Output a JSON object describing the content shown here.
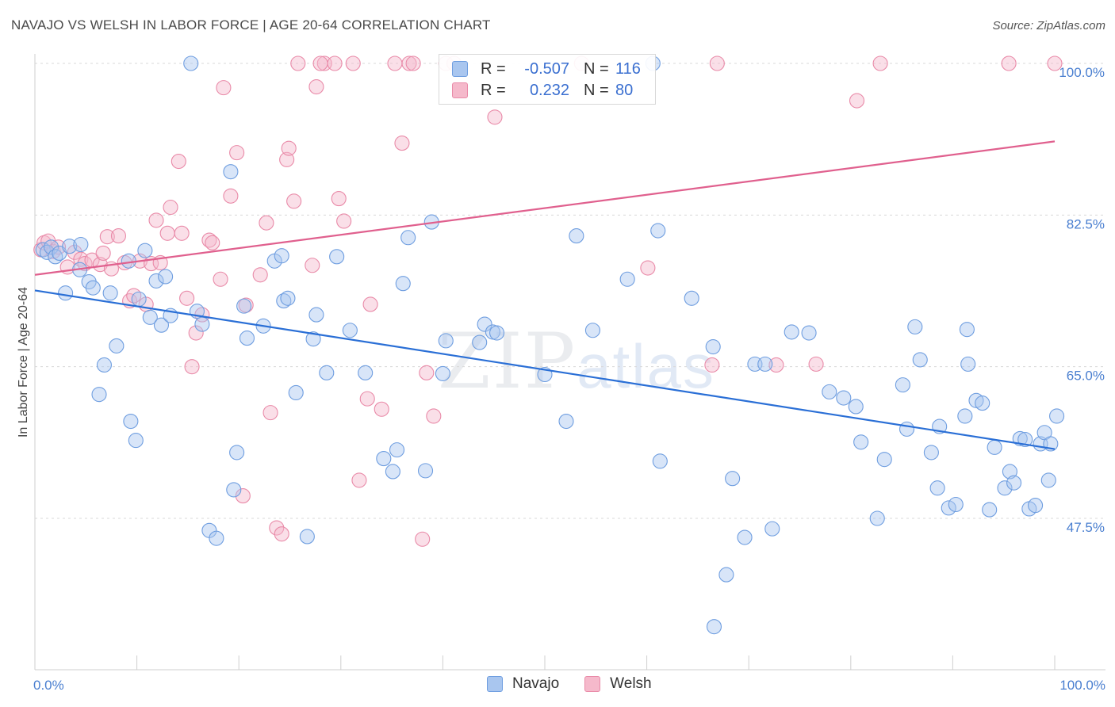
{
  "title": "NAVAJO VS WELSH IN LABOR FORCE | AGE 20-64 CORRELATION CHART",
  "source": "Source: ZipAtlas.com",
  "watermark": {
    "zip": "ZIP",
    "atlas": "atlas"
  },
  "colors": {
    "navajo_fill": "#a9c6ef",
    "navajo_stroke": "#6f9ee0",
    "navajo_line": "#2a6fd6",
    "welsh_fill": "#f5b9cb",
    "welsh_stroke": "#e98aa8",
    "welsh_line": "#e0608e",
    "grid": "#d8d8d8",
    "axis_text": "#4a7fd0"
  },
  "legend_top": {
    "navajo": {
      "r_label": "R =",
      "r_value": "-0.507",
      "n_label": "N =",
      "n_value": "116"
    },
    "welsh": {
      "r_label": "R =",
      "r_value": "0.232",
      "n_label": "N =",
      "n_value": "80"
    }
  },
  "legend_bottom": {
    "navajo": "Navajo",
    "welsh": "Welsh"
  },
  "chart_data": {
    "type": "scatter",
    "title": "NAVAJO VS WELSH IN LABOR FORCE | AGE 20-64 CORRELATION CHART",
    "xlabel": "",
    "ylabel": "In Labor Force | Age 20-64",
    "xlim": [
      0,
      100
    ],
    "ylim": [
      32,
      102
    ],
    "x_tick_labels": [
      {
        "value": 0,
        "label": "0.0%"
      },
      {
        "value": 100,
        "label": "100.0%"
      }
    ],
    "y_tick_labels": [
      {
        "value": 100,
        "label": "100.0%"
      },
      {
        "value": 82.5,
        "label": "82.5%"
      },
      {
        "value": 65,
        "label": "65.0%"
      },
      {
        "value": 47.5,
        "label": "47.5%"
      }
    ],
    "y_gridlines": [
      100,
      82.5,
      65,
      47.5
    ],
    "legend": [
      "Navajo",
      "Welsh"
    ],
    "series": [
      {
        "name": "Navajo",
        "r": -0.507,
        "n": 116,
        "trend": {
          "x": [
            0,
            100
          ],
          "y": [
            73.8,
            55.5
          ]
        },
        "points": [
          [
            0.8,
            78.5
          ],
          [
            1.2,
            78.2
          ],
          [
            1.6,
            78.8
          ],
          [
            2.0,
            77.7
          ],
          [
            2.4,
            78.1
          ],
          [
            3.0,
            73.5
          ],
          [
            3.4,
            78.9
          ],
          [
            4.4,
            76.2
          ],
          [
            4.5,
            79.1
          ],
          [
            5.3,
            74.8
          ],
          [
            5.7,
            74.1
          ],
          [
            6.3,
            61.8
          ],
          [
            6.8,
            65.2
          ],
          [
            7.4,
            73.5
          ],
          [
            8.0,
            67.4
          ],
          [
            9.2,
            77.2
          ],
          [
            9.4,
            58.7
          ],
          [
            9.9,
            56.5
          ],
          [
            10.2,
            72.8
          ],
          [
            10.8,
            78.4
          ],
          [
            11.3,
            70.7
          ],
          [
            11.9,
            74.9
          ],
          [
            12.4,
            69.8
          ],
          [
            12.8,
            75.4
          ],
          [
            13.3,
            70.9
          ],
          [
            15.3,
            100
          ],
          [
            15.9,
            71.4
          ],
          [
            16.4,
            69.9
          ],
          [
            17.1,
            46.1
          ],
          [
            17.8,
            45.2
          ],
          [
            19.2,
            87.5
          ],
          [
            19.5,
            50.8
          ],
          [
            19.8,
            55.1
          ],
          [
            20.5,
            72.0
          ],
          [
            20.8,
            68.3
          ],
          [
            22.4,
            69.7
          ],
          [
            23.5,
            77.2
          ],
          [
            24.2,
            77.8
          ],
          [
            24.4,
            72.6
          ],
          [
            24.8,
            72.9
          ],
          [
            25.6,
            62.0
          ],
          [
            26.7,
            45.4
          ],
          [
            27.3,
            68.2
          ],
          [
            27.6,
            71.0
          ],
          [
            28.6,
            64.3
          ],
          [
            29.6,
            77.7
          ],
          [
            30.9,
            69.2
          ],
          [
            32.4,
            64.3
          ],
          [
            34.2,
            54.4
          ],
          [
            35.1,
            52.9
          ],
          [
            35.5,
            55.4
          ],
          [
            36.1,
            74.6
          ],
          [
            36.6,
            79.9
          ],
          [
            38.3,
            53.0
          ],
          [
            38.9,
            81.7
          ],
          [
            40.0,
            64.2
          ],
          [
            40.3,
            68.0
          ],
          [
            43.6,
            67.8
          ],
          [
            44.1,
            69.9
          ],
          [
            44.9,
            69.0
          ],
          [
            52.1,
            58.7
          ],
          [
            53.1,
            80.1
          ],
          [
            54.7,
            69.2
          ],
          [
            58.1,
            75.1
          ],
          [
            61.1,
            80.7
          ],
          [
            61.3,
            54.1
          ],
          [
            64.4,
            72.9
          ],
          [
            66.5,
            67.3
          ],
          [
            67.8,
            41.0
          ],
          [
            68.4,
            52.1
          ],
          [
            69.6,
            45.3
          ],
          [
            70.6,
            65.3
          ],
          [
            71.6,
            65.3
          ],
          [
            72.3,
            46.3
          ],
          [
            74.2,
            69.0
          ],
          [
            75.9,
            68.9
          ],
          [
            77.9,
            62.1
          ],
          [
            79.3,
            61.4
          ],
          [
            80.5,
            60.4
          ],
          [
            81.0,
            56.3
          ],
          [
            82.6,
            47.5
          ],
          [
            83.3,
            54.3
          ],
          [
            85.1,
            62.9
          ],
          [
            85.5,
            57.8
          ],
          [
            86.3,
            69.6
          ],
          [
            86.8,
            65.8
          ],
          [
            87.9,
            55.1
          ],
          [
            88.5,
            51.0
          ],
          [
            88.7,
            58.1
          ],
          [
            89.6,
            48.7
          ],
          [
            90.3,
            49.1
          ],
          [
            91.4,
            69.3
          ],
          [
            91.5,
            65.3
          ],
          [
            91.2,
            59.3
          ],
          [
            92.3,
            61.1
          ],
          [
            92.9,
            60.8
          ],
          [
            93.6,
            48.5
          ],
          [
            94.1,
            55.7
          ],
          [
            95.1,
            51.0
          ],
          [
            95.6,
            52.9
          ],
          [
            96.0,
            51.6
          ],
          [
            96.6,
            56.7
          ],
          [
            97.1,
            56.6
          ],
          [
            97.5,
            48.6
          ],
          [
            98.1,
            49.0
          ],
          [
            98.6,
            56.1
          ],
          [
            99.0,
            57.4
          ],
          [
            99.6,
            56.1
          ],
          [
            100.2,
            59.3
          ],
          [
            99.4,
            51.9
          ],
          [
            45.3,
            68.9
          ],
          [
            60.6,
            100
          ],
          [
            66.6,
            35.0
          ],
          [
            50.0,
            64.1
          ]
        ]
      },
      {
        "name": "Welsh",
        "r": 0.232,
        "n": 80,
        "trend": {
          "x": [
            0,
            100
          ],
          "y": [
            75.6,
            91.0
          ]
        },
        "points": [
          [
            0.6,
            78.5
          ],
          [
            0.9,
            79.3
          ],
          [
            1.3,
            79.5
          ],
          [
            1.8,
            78.3
          ],
          [
            2.3,
            78.8
          ],
          [
            3.2,
            76.5
          ],
          [
            3.9,
            78.2
          ],
          [
            4.5,
            77.4
          ],
          [
            4.9,
            76.9
          ],
          [
            5.6,
            77.3
          ],
          [
            6.4,
            76.8
          ],
          [
            6.7,
            78.1
          ],
          [
            7.1,
            80.0
          ],
          [
            7.5,
            76.3
          ],
          [
            8.2,
            80.1
          ],
          [
            8.8,
            77.0
          ],
          [
            9.3,
            72.6
          ],
          [
            9.7,
            73.2
          ],
          [
            10.3,
            77.2
          ],
          [
            10.9,
            72.2
          ],
          [
            11.4,
            76.9
          ],
          [
            11.9,
            81.9
          ],
          [
            12.3,
            77.0
          ],
          [
            13.0,
            80.4
          ],
          [
            13.3,
            83.4
          ],
          [
            14.1,
            88.7
          ],
          [
            14.4,
            80.4
          ],
          [
            14.9,
            72.9
          ],
          [
            15.4,
            65.0
          ],
          [
            15.8,
            68.9
          ],
          [
            16.4,
            71.0
          ],
          [
            17.1,
            79.6
          ],
          [
            17.4,
            79.3
          ],
          [
            18.2,
            75.1
          ],
          [
            18.5,
            97.2
          ],
          [
            19.2,
            84.7
          ],
          [
            19.8,
            89.7
          ],
          [
            20.7,
            72.1
          ],
          [
            20.4,
            50.1
          ],
          [
            22.1,
            75.6
          ],
          [
            22.7,
            81.6
          ],
          [
            23.1,
            59.7
          ],
          [
            23.7,
            46.4
          ],
          [
            24.2,
            45.7
          ],
          [
            24.7,
            88.9
          ],
          [
            24.9,
            90.2
          ],
          [
            25.4,
            84.1
          ],
          [
            25.8,
            100
          ],
          [
            27.2,
            76.7
          ],
          [
            27.6,
            97.3
          ],
          [
            28.4,
            100
          ],
          [
            28.0,
            100
          ],
          [
            29.4,
            100
          ],
          [
            29.8,
            84.4
          ],
          [
            30.3,
            81.8
          ],
          [
            31.2,
            100
          ],
          [
            31.8,
            51.9
          ],
          [
            32.6,
            61.3
          ],
          [
            32.9,
            72.2
          ],
          [
            34.0,
            60.1
          ],
          [
            35.3,
            100
          ],
          [
            36.0,
            90.8
          ],
          [
            36.7,
            100
          ],
          [
            37.1,
            100
          ],
          [
            38.0,
            45.1
          ],
          [
            38.4,
            64.3
          ],
          [
            39.1,
            59.3
          ],
          [
            40.3,
            100
          ],
          [
            41.1,
            100
          ],
          [
            45.1,
            93.8
          ],
          [
            53.6,
            100
          ],
          [
            60.1,
            76.4
          ],
          [
            66.4,
            65.2
          ],
          [
            66.9,
            100
          ],
          [
            72.7,
            65.2
          ],
          [
            76.6,
            65.3
          ],
          [
            80.6,
            95.7
          ],
          [
            82.9,
            100
          ],
          [
            95.5,
            100
          ],
          [
            100.0,
            100
          ]
        ]
      }
    ]
  }
}
